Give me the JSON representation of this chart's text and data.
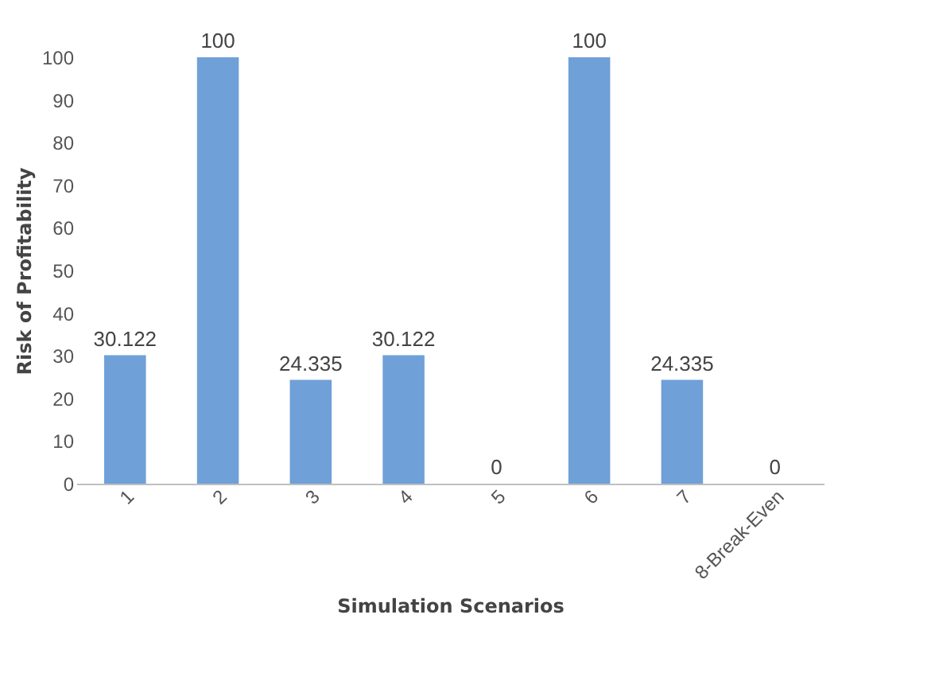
{
  "chart_data": {
    "type": "bar",
    "xlabel": "Simulation Scenarios",
    "ylabel": "Risk of Profitability",
    "categories": [
      "1",
      "2",
      "3",
      "4",
      "5",
      "6",
      "7",
      "8-Break-Even"
    ],
    "values": [
      30.122,
      100,
      24.335,
      30.122,
      0,
      100,
      24.335,
      0
    ],
    "color": "#6fa0d8",
    "ylim": [
      0,
      100
    ],
    "yticks": [
      0,
      10,
      20,
      30,
      40,
      50,
      60,
      70,
      80,
      90,
      100
    ],
    "data_labels": true
  }
}
